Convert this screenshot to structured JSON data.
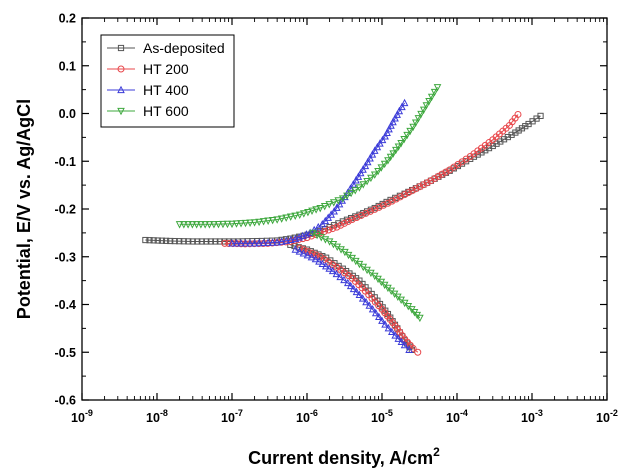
{
  "chart_data": {
    "type": "line",
    "xlabel": "Current density, A/cm",
    "xlabel_sup": "2",
    "ylabel": "Potential, E/V vs. Ag/AgCl",
    "x_scale": "log",
    "xlim": [
      1e-09,
      0.01
    ],
    "ylim": [
      -0.6,
      0.2
    ],
    "x_ticks": [
      {
        "value": 1e-09,
        "base": "10",
        "exp": "-9"
      },
      {
        "value": 1e-08,
        "base": "10",
        "exp": "-8"
      },
      {
        "value": 1e-07,
        "base": "10",
        "exp": "-7"
      },
      {
        "value": 1e-06,
        "base": "10",
        "exp": "-6"
      },
      {
        "value": 1e-05,
        "base": "10",
        "exp": "-5"
      },
      {
        "value": 0.0001,
        "base": "10",
        "exp": "-4"
      },
      {
        "value": 0.001,
        "base": "10",
        "exp": "-3"
      },
      {
        "value": 0.01,
        "base": "10",
        "exp": "-2"
      }
    ],
    "y_ticks": [
      {
        "value": 0.2,
        "label": "0.2"
      },
      {
        "value": 0.1,
        "label": "0.1"
      },
      {
        "value": 0.0,
        "label": "0.0"
      },
      {
        "value": -0.1,
        "label": "-0.1"
      },
      {
        "value": -0.2,
        "label": "-0.2"
      },
      {
        "value": -0.3,
        "label": "-0.3"
      },
      {
        "value": -0.4,
        "label": "-0.4"
      },
      {
        "value": -0.5,
        "label": "-0.5"
      },
      {
        "value": -0.6,
        "label": "-0.6"
      }
    ],
    "grid": false,
    "legend_position": "top-left",
    "series": [
      {
        "name": "As-deposited",
        "color": "#555555",
        "marker": "square",
        "points": [
          [
            7e-09,
            -0.265
          ],
          [
            1.5e-08,
            -0.267
          ],
          [
            3e-08,
            -0.268
          ],
          [
            6e-08,
            -0.268
          ],
          [
            1.2e-07,
            -0.268
          ],
          [
            2.5e-07,
            -0.267
          ],
          [
            4e-07,
            -0.266
          ],
          [
            6e-07,
            -0.262
          ],
          [
            9e-07,
            -0.256
          ],
          [
            1.3e-06,
            -0.25
          ],
          [
            2e-06,
            -0.238
          ],
          [
            3e-06,
            -0.226
          ],
          [
            5e-06,
            -0.212
          ],
          [
            8e-06,
            -0.198
          ],
          [
            1.3e-05,
            -0.181
          ],
          [
            2e-05,
            -0.168
          ],
          [
            4e-05,
            -0.145
          ],
          [
            8e-05,
            -0.12
          ],
          [
            0.00015,
            -0.095
          ],
          [
            0.0003,
            -0.068
          ],
          [
            0.0006,
            -0.04
          ],
          [
            0.0009,
            -0.022
          ],
          [
            0.0013,
            -0.005
          ]
        ],
        "cathodic": [
          [
            6e-07,
            -0.275
          ],
          [
            1e-06,
            -0.285
          ],
          [
            1.8e-06,
            -0.302
          ],
          [
            3e-06,
            -0.325
          ],
          [
            5e-06,
            -0.35
          ],
          [
            8e-06,
            -0.385
          ],
          [
            1.2e-05,
            -0.42
          ],
          [
            1.6e-05,
            -0.45
          ],
          [
            2e-05,
            -0.475
          ],
          [
            2.5e-05,
            -0.495
          ]
        ]
      },
      {
        "name": "HT 200",
        "color": "#e8474b",
        "marker": "circle",
        "points": [
          [
            8e-08,
            -0.272
          ],
          [
            1.5e-07,
            -0.273
          ],
          [
            3e-07,
            -0.272
          ],
          [
            6e-07,
            -0.268
          ],
          [
            1e-06,
            -0.26
          ],
          [
            1.5e-06,
            -0.25
          ],
          [
            2.5e-06,
            -0.238
          ],
          [
            4e-06,
            -0.222
          ],
          [
            7e-06,
            -0.205
          ],
          [
            1.2e-05,
            -0.188
          ],
          [
            2e-05,
            -0.17
          ],
          [
            4e-05,
            -0.145
          ],
          [
            8e-05,
            -0.118
          ],
          [
            0.00015,
            -0.09
          ],
          [
            0.0003,
            -0.055
          ],
          [
            0.0005,
            -0.025
          ],
          [
            0.00065,
            -0.002
          ]
        ],
        "cathodic": [
          [
            8e-07,
            -0.282
          ],
          [
            1.5e-06,
            -0.3
          ],
          [
            2.5e-06,
            -0.322
          ],
          [
            4e-06,
            -0.345
          ],
          [
            6e-06,
            -0.372
          ],
          [
            1e-05,
            -0.41
          ],
          [
            1.5e-05,
            -0.445
          ],
          [
            2e-05,
            -0.472
          ],
          [
            2.6e-05,
            -0.492
          ],
          [
            3e-05,
            -0.5
          ]
        ]
      },
      {
        "name": "HT 400",
        "color": "#3b3bd8",
        "marker": "triangle-up",
        "points": [
          [
            1e-07,
            -0.272
          ],
          [
            2e-07,
            -0.272
          ],
          [
            4e-07,
            -0.27
          ],
          [
            7e-07,
            -0.263
          ],
          [
            1.1e-06,
            -0.25
          ],
          [
            1.6e-06,
            -0.232
          ],
          [
            2.3e-06,
            -0.205
          ],
          [
            3.2e-06,
            -0.175
          ],
          [
            4.5e-06,
            -0.14
          ],
          [
            6e-06,
            -0.11
          ],
          [
            8e-06,
            -0.078
          ],
          [
            1.1e-05,
            -0.048
          ],
          [
            1.4e-05,
            -0.018
          ],
          [
            1.7e-05,
            0.005
          ],
          [
            2e-05,
            0.022
          ]
        ],
        "cathodic": [
          [
            7e-07,
            -0.285
          ],
          [
            1.3e-06,
            -0.305
          ],
          [
            2.2e-06,
            -0.33
          ],
          [
            3.5e-06,
            -0.355
          ],
          [
            5e-06,
            -0.38
          ],
          [
            7.5e-06,
            -0.41
          ],
          [
            1.1e-05,
            -0.442
          ],
          [
            1.5e-05,
            -0.465
          ],
          [
            2e-05,
            -0.485
          ],
          [
            2.3e-05,
            -0.495
          ]
        ]
      },
      {
        "name": "HT 600",
        "color": "#3ea83e",
        "marker": "triangle-down",
        "points": [
          [
            2e-08,
            -0.232
          ],
          [
            5e-08,
            -0.232
          ],
          [
            1e-07,
            -0.231
          ],
          [
            2e-07,
            -0.228
          ],
          [
            4e-07,
            -0.222
          ],
          [
            8e-07,
            -0.212
          ],
          [
            1.5e-06,
            -0.198
          ],
          [
            3e-06,
            -0.178
          ],
          [
            5e-06,
            -0.155
          ],
          [
            8e-06,
            -0.128
          ],
          [
            1.2e-05,
            -0.098
          ],
          [
            1.8e-05,
            -0.062
          ],
          [
            2.6e-05,
            -0.028
          ],
          [
            3.6e-05,
            0.008
          ],
          [
            4.6e-05,
            0.035
          ],
          [
            5.5e-05,
            0.055
          ]
        ],
        "cathodic": [
          [
            1.2e-06,
            -0.25
          ],
          [
            2e-06,
            -0.268
          ],
          [
            3.2e-06,
            -0.29
          ],
          [
            5e-06,
            -0.315
          ],
          [
            8e-06,
            -0.34
          ],
          [
            1.2e-05,
            -0.365
          ],
          [
            1.8e-05,
            -0.39
          ],
          [
            2.5e-05,
            -0.41
          ],
          [
            3.2e-05,
            -0.428
          ]
        ]
      }
    ]
  }
}
